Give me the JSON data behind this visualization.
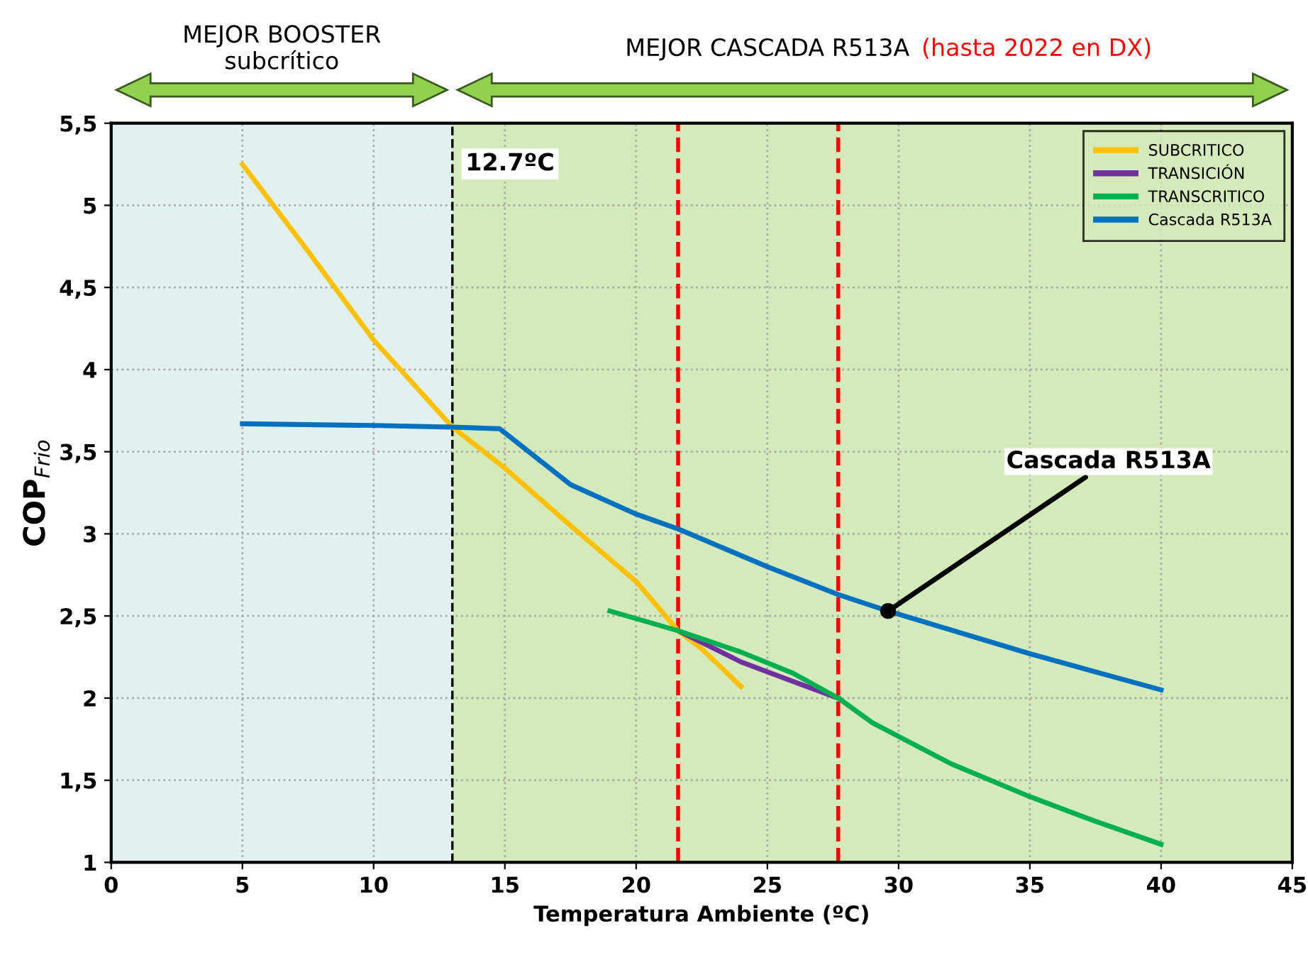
{
  "chart_data": {
    "type": "line",
    "xlabel": "Temperatura Ambiente (ºC)",
    "ylabel": "COP$_{Frio}$",
    "xlim": [
      0,
      45
    ],
    "xticks": [
      0,
      5,
      10,
      15,
      20,
      25,
      30,
      35,
      40,
      45
    ],
    "ylim": [
      1,
      5.5
    ],
    "yticks": [
      1,
      {
        "value": 1.5,
        "label": "1,5"
      },
      2,
      {
        "value": 2.5,
        "label": "2,5"
      },
      3,
      {
        "value": 3.5,
        "label": "3,5"
      },
      4,
      {
        "value": 4.5,
        "label": "4,5"
      },
      5,
      {
        "value": 5.5,
        "label": "5,5"
      }
    ],
    "grid": true,
    "legend": "top right",
    "marker": "none",
    "line_style": "solid",
    "series": [
      {
        "name": "SUBCRITICO",
        "color": "#ffc000",
        "x": [
          5,
          7.5,
          10,
          13,
          15,
          17.5,
          20,
          21.6,
          22.5,
          24
        ],
        "values": [
          5.25,
          4.72,
          4.18,
          3.65,
          3.4,
          3.05,
          2.71,
          2.41,
          2.3,
          2.07
        ]
      },
      {
        "name": "TRANSICIÓN",
        "color": "#7030a0",
        "x": [
          21.6,
          24,
          26,
          27.7
        ],
        "values": [
          2.41,
          2.22,
          2.1,
          2.0
        ]
      },
      {
        "name": "TRANSCRITICO",
        "color": "#00b050",
        "x": [
          19,
          21.6,
          24,
          26,
          27.7,
          29,
          32,
          35,
          37.5,
          40
        ],
        "values": [
          2.53,
          2.41,
          2.28,
          2.15,
          2.0,
          1.85,
          1.6,
          1.4,
          1.25,
          1.11
        ]
      },
      {
        "name": "Cascada R513A",
        "color": "#0070c0",
        "x": [
          5,
          10,
          13,
          14.8,
          17.5,
          20,
          21.6,
          25,
          27.7,
          29.6,
          35,
          40
        ],
        "values": [
          3.67,
          3.66,
          3.65,
          3.64,
          3.3,
          3.12,
          3.03,
          2.8,
          2.63,
          2.53,
          2.27,
          2.05
        ]
      }
    ],
    "ref_lines": [
      {
        "axis": "x",
        "value": 13,
        "label": "12.7ºC",
        "color": "#000000",
        "line_style": "dashed"
      },
      {
        "axis": "x",
        "value": 21.6,
        "color": "#ff0000",
        "line_style": "dashed"
      },
      {
        "axis": "x",
        "value": 27.7,
        "color": "#ff0000",
        "line_style": "dashed"
      }
    ],
    "bands": [
      {
        "axis": "x",
        "from": 0,
        "to": 13,
        "label": "MEJOR BOOSTER\nsubcrítico",
        "color": "#e1f0f0"
      },
      {
        "axis": "x",
        "from": 13,
        "to": 45,
        "label": "MEJOR CASCADA R513A",
        "color": "#d4eabb"
      }
    ],
    "annotations": [
      {
        "text": "Cascada R513A",
        "x": 29.6,
        "y": 2.53
      },
      "(hasta 2022 en DX)"
    ]
  }
}
